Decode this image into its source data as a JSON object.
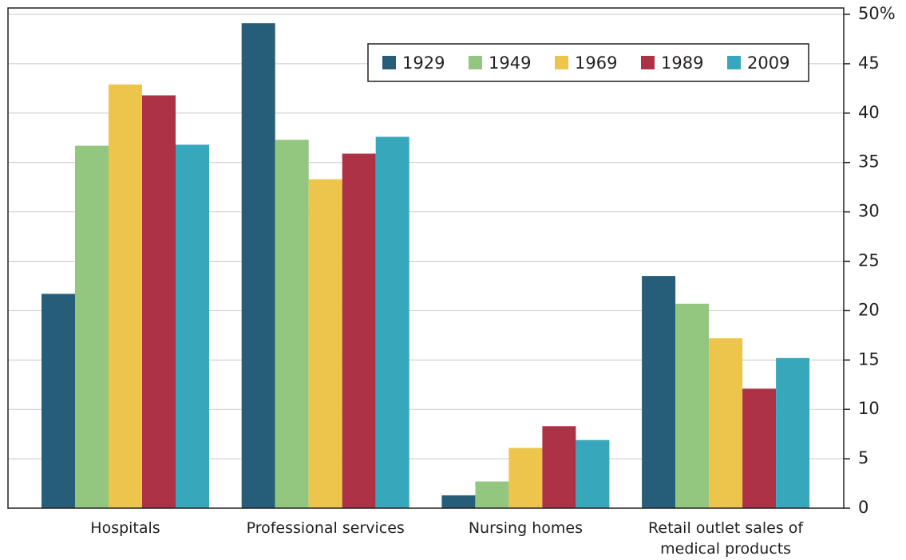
{
  "chart_data": {
    "type": "bar",
    "categories": [
      "Hospitals",
      "Professional services",
      "Nursing homes",
      "Retail outlet sales of medical products"
    ],
    "series": [
      {
        "name": "1929",
        "color": "#265e7a",
        "values": [
          21.7,
          49.1,
          1.3,
          23.5
        ]
      },
      {
        "name": "1949",
        "color": "#93c77f",
        "values": [
          36.7,
          37.3,
          2.7,
          20.7
        ]
      },
      {
        "name": "1969",
        "color": "#ecc54a",
        "values": [
          42.9,
          33.3,
          6.1,
          17.2
        ]
      },
      {
        "name": "1989",
        "color": "#ae3246",
        "values": [
          41.8,
          35.9,
          8.3,
          12.1
        ]
      },
      {
        "name": "2009",
        "color": "#37a7bc",
        "values": [
          36.8,
          37.6,
          6.9,
          15.2
        ]
      }
    ],
    "ylim": [
      0,
      50
    ],
    "yticks": [
      0,
      5,
      10,
      15,
      20,
      25,
      30,
      35,
      40,
      45,
      {
        "value": 50,
        "label": "50%"
      }
    ],
    "grid": true,
    "legend": "top-right"
  }
}
